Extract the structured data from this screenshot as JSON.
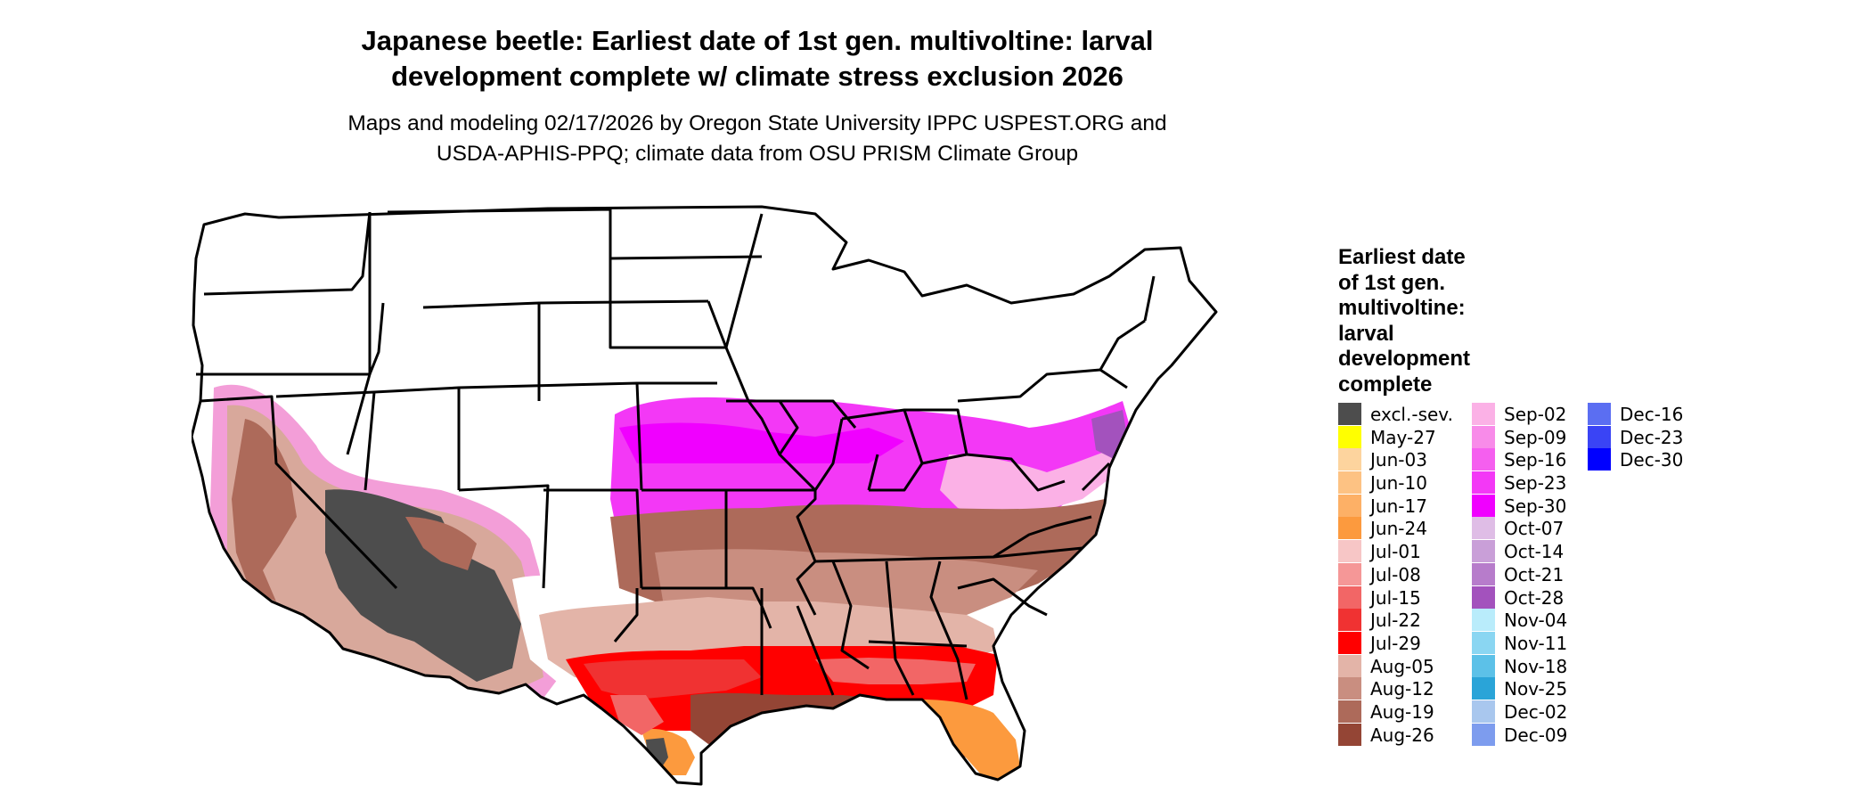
{
  "title_line1": "Japanese beetle: Earliest date of 1st gen. multivoltine: larval",
  "title_line2": "development complete w/ climate stress exclusion 2026",
  "subtitle_line1": "Maps and modeling 02/17/2026 by Oregon State University IPPC USPEST.ORG and",
  "subtitle_line2": "USDA-APHIS-PPQ; climate data from OSU PRISM Climate Group",
  "legend": {
    "title_lines": [
      "Earliest date",
      "of 1st gen.",
      "multivoltine:",
      "larval",
      "development",
      "complete"
    ],
    "columns": [
      [
        {
          "label": "excl.-sev.",
          "color": "#4d4d4d"
        },
        {
          "label": "May-27",
          "color": "#ffff00"
        },
        {
          "label": "Jun-03",
          "color": "#fdd49e"
        },
        {
          "label": "Jun-10",
          "color": "#fdc283"
        },
        {
          "label": "Jun-17",
          "color": "#fdb066"
        },
        {
          "label": "Jun-24",
          "color": "#fc9a3e"
        },
        {
          "label": "Jul-01",
          "color": "#f7c6c6"
        },
        {
          "label": "Jul-08",
          "color": "#f59797"
        },
        {
          "label": "Jul-15",
          "color": "#f26666"
        },
        {
          "label": "Jul-22",
          "color": "#f03232"
        },
        {
          "label": "Jul-29",
          "color": "#ff0000"
        },
        {
          "label": "Aug-05",
          "color": "#e3b4a8"
        },
        {
          "label": "Aug-12",
          "color": "#c98e80"
        },
        {
          "label": "Aug-19",
          "color": "#ad6a5a"
        },
        {
          "label": "Aug-26",
          "color": "#944535"
        }
      ],
      [
        {
          "label": "Sep-02",
          "color": "#fbb1e6"
        },
        {
          "label": "Sep-09",
          "color": "#f88be9"
        },
        {
          "label": "Sep-16",
          "color": "#f55fef"
        },
        {
          "label": "Sep-23",
          "color": "#f338f6"
        },
        {
          "label": "Sep-30",
          "color": "#f000ff"
        },
        {
          "label": "Oct-07",
          "color": "#dfbde6"
        },
        {
          "label": "Oct-14",
          "color": "#c99fd8"
        },
        {
          "label": "Oct-21",
          "color": "#b77ccb"
        },
        {
          "label": "Oct-28",
          "color": "#a352bd"
        },
        {
          "label": "Nov-04",
          "color": "#b9ecfb"
        },
        {
          "label": "Nov-11",
          "color": "#8ad6f2"
        },
        {
          "label": "Nov-18",
          "color": "#5cc1e8"
        },
        {
          "label": "Nov-25",
          "color": "#2aa4d8"
        },
        {
          "label": "Dec-02",
          "color": "#a9c7ee"
        },
        {
          "label": "Dec-09",
          "color": "#7d9cee"
        }
      ],
      [
        {
          "label": "Dec-16",
          "color": "#5b6ef2"
        },
        {
          "label": "Dec-23",
          "color": "#3a44f5"
        },
        {
          "label": "Dec-30",
          "color": "#0000ff"
        }
      ]
    ]
  }
}
